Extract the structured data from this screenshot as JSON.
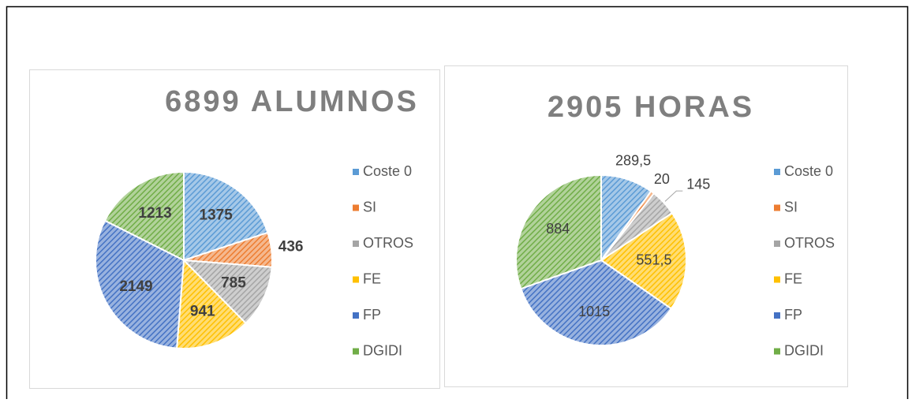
{
  "chart_data": [
    {
      "type": "pie",
      "title": "6899 ALUMNOS",
      "categories": [
        "Coste 0",
        "SI",
        "OTROS",
        "FE",
        "FP",
        "DGIDI"
      ],
      "values": [
        1375,
        436,
        785,
        941,
        2149,
        1213
      ],
      "colors": [
        "#5b9bd5",
        "#ed7d31",
        "#a5a5a5",
        "#ffc000",
        "#4472c4",
        "#70ad47"
      ],
      "legend": "right"
    },
    {
      "type": "pie",
      "title": "2905 HORAS",
      "categories": [
        "Coste 0",
        "SI",
        "OTROS",
        "FE",
        "FP",
        "DGIDI"
      ],
      "values": [
        289.5,
        20,
        145,
        551.5,
        1015,
        884
      ],
      "value_labels": [
        "289,5",
        "20",
        "145",
        "551,5",
        "1015",
        "884"
      ],
      "colors": [
        "#5b9bd5",
        "#ed7d31",
        "#a5a5a5",
        "#ffc000",
        "#4472c4",
        "#70ad47"
      ],
      "legend": "right"
    }
  ]
}
